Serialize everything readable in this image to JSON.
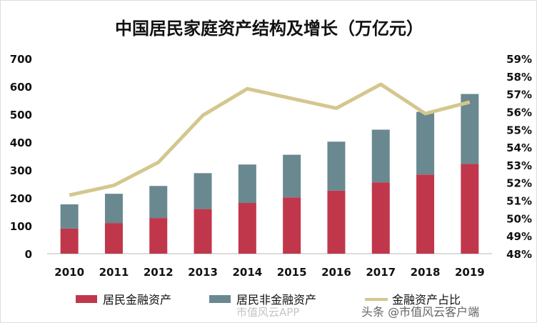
{
  "chart_data": {
    "type": "bar",
    "stacked": true,
    "title": "中国居民家庭资产结构及增长（万亿元）",
    "categories": [
      "2010",
      "2011",
      "2012",
      "2013",
      "2014",
      "2015",
      "2016",
      "2017",
      "2018",
      "2019"
    ],
    "series": [
      {
        "name": "居民金融资产",
        "type": "bar",
        "axis": "left",
        "color": "#C0374B",
        "values": [
          90,
          110,
          128,
          160,
          182,
          202,
          226,
          256,
          284,
          322
        ]
      },
      {
        "name": "居民非金融资产",
        "type": "bar",
        "axis": "left",
        "color": "#6A8890",
        "values": [
          87,
          105,
          115,
          129,
          138,
          153,
          176,
          189,
          225,
          251
        ]
      },
      {
        "name": "金融资产占比",
        "type": "line",
        "axis": "right",
        "color": "#D4C78E",
        "values": [
          51.3,
          51.85,
          53.15,
          55.8,
          57.3,
          56.75,
          56.2,
          57.55,
          55.9,
          56.55
        ]
      }
    ],
    "ylim": [
      0,
      700
    ],
    "yticks": [
      "0",
      "100",
      "200",
      "300",
      "400",
      "500",
      "600",
      "700"
    ],
    "y2lim": [
      48,
      59
    ],
    "y2ticks": [
      "48%",
      "49%",
      "50%",
      "51%",
      "52%",
      "53%",
      "54%",
      "55%",
      "56%",
      "57%",
      "58%",
      "59%"
    ],
    "grid": false,
    "legend": "bottom"
  },
  "watermarks": [
    "市值风云",
    "市值风云APP",
    "头条 @市值风云客户端"
  ]
}
